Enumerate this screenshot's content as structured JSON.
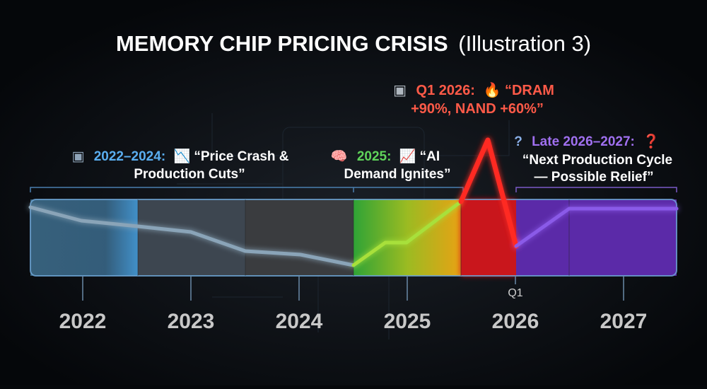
{
  "title": {
    "main": "MEMORY CHIP PRICING CRISIS",
    "suffix": "(Illustration 3)"
  },
  "annotations": [
    {
      "icon": "▣",
      "label": "2022–2024:",
      "lines": [
        "📉 “Price Crash &",
        "Production Cuts”"
      ]
    },
    {
      "icon": "🧠",
      "label": "2025:",
      "lines": [
        "📈 “AI",
        "Demand Ignites”"
      ]
    },
    {
      "icon": "▣",
      "label": "Q1 2026:",
      "lines": [
        "🔥 “DRAM",
        "+90%, NAND +60%”"
      ]
    },
    {
      "icon": "?",
      "label": "Late 2026–2027:",
      "lines": [
        "❓",
        "“Next Production Cycle",
        "— Possible Relief”"
      ]
    }
  ],
  "timeline": {
    "years": [
      "2022",
      "2023",
      "2024",
      "2025",
      "2026",
      "2027"
    ],
    "marker": "Q1"
  }
}
